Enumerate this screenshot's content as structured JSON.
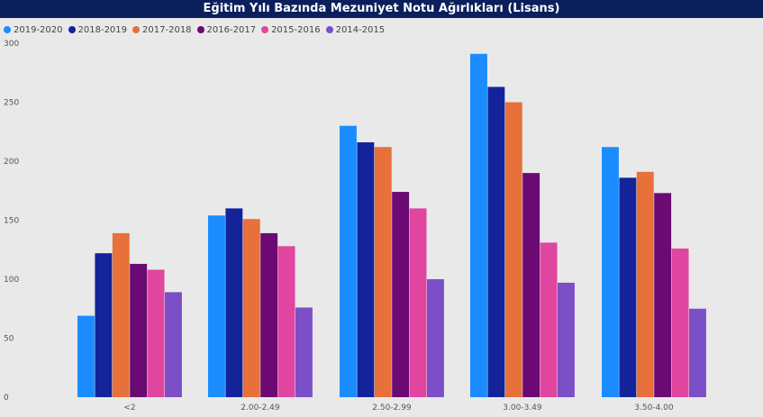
{
  "chart_data": {
    "type": "bar",
    "title": "Eğitim Yılı Bazında Mezuniyet Notu Ağırlıkları (Lisans)",
    "xlabel": "",
    "ylabel": "",
    "ylim": [
      0,
      300
    ],
    "yticks": [
      0,
      50,
      100,
      150,
      200,
      250,
      300
    ],
    "categories": [
      "<2",
      "2.00-2.49",
      "2.50-2.99",
      "3.00-3.49",
      "3.50-4.00"
    ],
    "legend_position": "top-left",
    "grid": false,
    "series": [
      {
        "name": "2019-2020",
        "color": "#1a8cff",
        "values": [
          69,
          154,
          230,
          291,
          212
        ]
      },
      {
        "name": "2018-2019",
        "color": "#13239a",
        "values": [
          122,
          160,
          216,
          263,
          186
        ]
      },
      {
        "name": "2017-2018",
        "color": "#e8703a",
        "values": [
          139,
          151,
          212,
          250,
          191
        ]
      },
      {
        "name": "2016-2017",
        "color": "#6b0a73",
        "values": [
          113,
          139,
          174,
          190,
          173
        ]
      },
      {
        "name": "2015-2016",
        "color": "#e0459f",
        "values": [
          108,
          128,
          160,
          131,
          126
        ]
      },
      {
        "name": "2014-2015",
        "color": "#7b4fc7",
        "values": [
          89,
          76,
          100,
          97,
          75
        ]
      }
    ]
  }
}
